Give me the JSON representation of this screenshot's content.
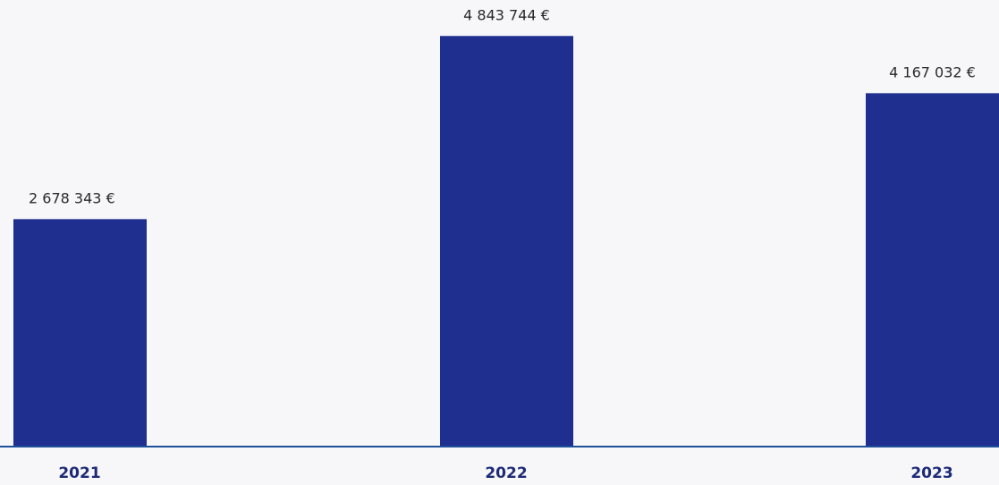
{
  "chart_data": {
    "type": "bar",
    "categories": [
      "2021",
      "2022",
      "2023"
    ],
    "values": [
      2678343,
      4843744,
      4167032
    ],
    "value_labels": [
      "2 678 343 €",
      "4 843 744 €",
      "4 167 032 €"
    ],
    "ylim": [
      0,
      5100000
    ],
    "grid": false,
    "legend": "none",
    "colors": {
      "bar": "#1f2f8f",
      "axis": "#1d4f9a",
      "tick_text": "#1c2a78",
      "value_text": "#2a2a2a"
    }
  }
}
